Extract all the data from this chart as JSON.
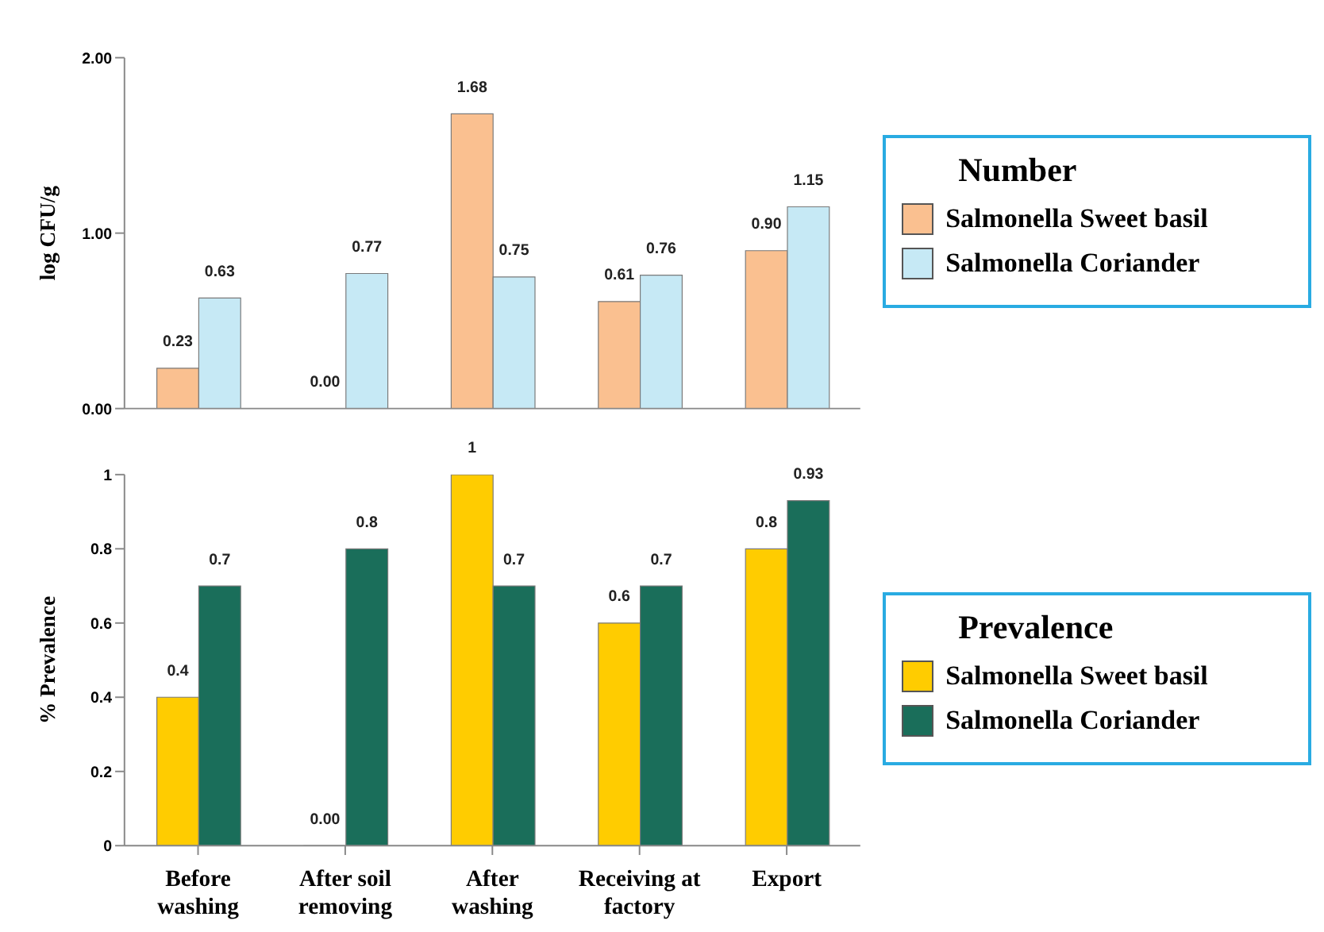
{
  "chart_data": [
    {
      "type": "bar",
      "ylabel": "log CFU/g",
      "legend_title": "Number",
      "categories": [
        null,
        null,
        null,
        null,
        null
      ],
      "series": [
        {
          "name": "Salmonella Sweet basil",
          "color": "#fac090",
          "values": [
            0.23,
            0,
            1.68,
            0.61,
            0.9
          ],
          "value_labels": [
            "0.23",
            "0.00",
            "1.68",
            "0.61",
            "0.90"
          ]
        },
        {
          "name": "Salmonella Coriander",
          "color": "#c6e9f5",
          "values": [
            0.63,
            0.77,
            0.75,
            0.76,
            1.15
          ],
          "value_labels": [
            "0.63",
            "0.77",
            "0.75",
            "0.76",
            "1.15"
          ]
        }
      ],
      "ylim": [
        0,
        2
      ],
      "yticks": [
        {
          "value": 0,
          "label": "0.00"
        },
        {
          "value": 1,
          "label": "1.00"
        },
        {
          "value": 2,
          "label": "2.00"
        }
      ],
      "tick_labels": "y",
      "grid": false,
      "legend": "right"
    },
    {
      "type": "bar",
      "ylabel": "% Prevalence",
      "legend_title": "Prevalence",
      "categories": [
        "Before washing",
        "After soil removing",
        "After washing",
        "Receiving at factory",
        "Export"
      ],
      "series": [
        {
          "name": "Salmonella Sweet basil",
          "color": "#ffcc00",
          "values": [
            0.4,
            0,
            1,
            0.6,
            0.8
          ],
          "value_labels": [
            "0.4",
            "0.00",
            "1",
            "0.6",
            "0.8"
          ]
        },
        {
          "name": "Salmonella Coriander",
          "color": "#1a6e5a",
          "values": [
            0.7,
            0.8,
            0.7,
            0.7,
            0.93
          ],
          "value_labels": [
            "0.7",
            "0.8",
            "0.7",
            "0.7",
            "0.93"
          ]
        }
      ],
      "ylim": [
        0,
        1
      ],
      "yticks": [
        0,
        0.2,
        0.4,
        0.6,
        0.8,
        1
      ],
      "grid": false,
      "legend": "right"
    }
  ]
}
